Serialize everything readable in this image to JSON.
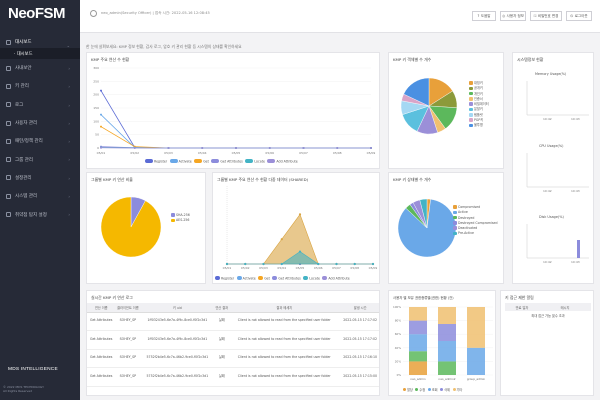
{
  "app": {
    "name": "NeoFSM",
    "vendor": "MDS INTELLIGENCE",
    "copyright_1": "© 2022 MDS TECHNOLOGY",
    "copyright_2": "All Rights Reserved"
  },
  "sidebar": {
    "items": [
      {
        "label": "대시보드",
        "state": "open"
      },
      {
        "label": "· 대시보드",
        "state": "sub"
      },
      {
        "label": "사내보안"
      },
      {
        "label": "키 관리"
      },
      {
        "label": "로그"
      },
      {
        "label": "사용자 관리"
      },
      {
        "label": "패턴/정책 관리"
      },
      {
        "label": "그룹 관리"
      },
      {
        "label": "설정관리"
      },
      {
        "label": "시스템 관리"
      },
      {
        "label": "취약점 탐지 설정"
      }
    ]
  },
  "topbar": {
    "user": "neo_admin(Security Officer) | 접속 시간: 2022-05-16 12:08:45",
    "buttons": [
      "도움말",
      "사용자 정보",
      "비밀번호 변경",
      "로그아웃"
    ]
  },
  "breadcrumb": "한 눈에 살펴보세요: KMP 정보 현황, 감사 로그, 암호 키 관리 현황 등 시스템의 상태를 확인하세요",
  "kmp_card": {
    "title": "KMP 주요 연산 수 현황",
    "legend": [
      "Register",
      "Activate",
      "Get",
      "Get Attributes",
      "Locate",
      "Add Attribute"
    ],
    "legend_colors": [
      "#5b6bd5",
      "#6aa8e8",
      "#f5a623",
      "#8c8cdc",
      "#43b3c5",
      "#9b8fd8"
    ]
  },
  "kmp_types_card": {
    "title": "KMP 키 객체별 수 개수",
    "legend": [
      "대칭키",
      "공개키",
      "개인키",
      "인증서",
      "비밀데이터",
      "분할키",
      "템플릿",
      "PGP키",
      "불투명"
    ],
    "colors": [
      "#e8a03a",
      "#8c9a3a",
      "#5cb85c",
      "#f0c070",
      "#9b8fd8",
      "#5bc0de",
      "#a5d8f3",
      "#d9a4c8",
      "#4a90e2"
    ]
  },
  "sys_card": {
    "title": "시스템정보 현황",
    "memory": {
      "label": "Memory Usage(%)",
      "ticks": [
        "10:42",
        "10:43"
      ]
    },
    "cpu": {
      "label": "CPU Usage(%)",
      "ticks": [
        "10:42",
        "10:43"
      ]
    },
    "disk": {
      "label": "Disk Usage(%)",
      "ticks": [
        "10:42",
        "10:43"
      ]
    }
  },
  "group_card": {
    "title": "그룹별 KMP 키 연산 비율",
    "legend": [
      "SHA-256",
      "AES-256"
    ]
  },
  "group_ops_card": {
    "title": "그룹별 KMP 주요 연산 수 현황 다중 데이터 (SHARED)"
  },
  "state_card": {
    "title": "KMP 키 상태별 수 개수",
    "legend": [
      "Compromised",
      "Active",
      "Destroyed",
      "Destroyed Compromised",
      "Deactivated",
      "Pre-Active"
    ],
    "colors": [
      "#e8a03a",
      "#6aa8e8",
      "#5cb85c",
      "#8c8cdc",
      "#9b8fd8",
      "#43b3c5"
    ]
  },
  "log_card": {
    "title": "실시간 KMP 키 연산 로그",
    "headers": [
      "연산 이름",
      "클라이언트 이름",
      "키 uid",
      "연산 결과",
      "결과 메세지",
      "발생 시간"
    ],
    "rows": [
      [
        "Get Attributes",
        "SOHEY_SP",
        "1ff03243e5-6e7a-4f9c-8ce0-f0f2c3d1",
        "실패",
        "Client is not allowed to read from the specified user folder",
        "2022-05-15 17:17:02"
      ],
      [
        "Get Attributes",
        "SOHEY_SP",
        "1ff03243e5-6e7a-4f9c-8ce0-f0f2c3d1",
        "실패",
        "Client is not allowed to read from the specified user folder",
        "2022-05-15 17:17:02"
      ],
      [
        "Get Attributes",
        "SOHEY_SP",
        "5752f2b4e5-6c7a-46b2-9ce0-f0f2c3d1",
        "실패",
        "Client is not allowed to read from the specified user folder",
        "2022-05-15 17:16:10"
      ],
      [
        "Get Attributes",
        "SOHEY_SP",
        "5752f2b4e5-6c7a-46b2-9ce0-f0f2c3d1",
        "실패",
        "Client is not allowed to read from the specified user folder",
        "2022-05-15 17:15:00"
      ]
    ]
  },
  "user_perm_card": {
    "title": "사용자 별 보유 권한종류별(권한) 현황 (건)",
    "legend": [
      "할당",
      "수정",
      "조회",
      "삭제",
      "기타"
    ],
    "legend_colors": [
      "#e8a03a",
      "#5cb85c",
      "#6aa8e8",
      "#8c8cdc",
      "#f0c070"
    ]
  },
  "alert_card": {
    "title": "키 접근 제한 알림",
    "headers": [
      "만료 일자",
      "메시지"
    ],
    "row": "최대 접근 가능 횟수 초과"
  },
  "chart_data": [
    {
      "type": "line",
      "title": "KMP 주요 연산 수 현황",
      "categories": [
        "05/01",
        "05/02",
        "05/03",
        "05/04",
        "05/05",
        "05/06",
        "05/07",
        "05/08",
        "05/09"
      ],
      "ylim": [
        0,
        300
      ],
      "yticks": [
        0,
        50,
        100,
        150,
        200,
        250,
        300
      ],
      "series": [
        {
          "name": "Register",
          "values": [
            215,
            2,
            0,
            0,
            0,
            0,
            0,
            0,
            0
          ]
        },
        {
          "name": "Activate",
          "values": [
            125,
            2,
            0,
            0,
            0,
            0,
            0,
            0,
            0
          ]
        },
        {
          "name": "Get",
          "values": [
            80,
            5,
            0,
            0,
            0,
            0,
            0,
            0,
            0
          ]
        },
        {
          "name": "Get Attributes",
          "values": [
            5,
            1,
            0,
            0,
            0,
            0,
            0,
            0,
            0
          ]
        },
        {
          "name": "Locate",
          "values": [
            2,
            1,
            0,
            0,
            0,
            0,
            0,
            0,
            0
          ]
        },
        {
          "name": "Add Attribute",
          "values": [
            1,
            0,
            0,
            0,
            0,
            0,
            0,
            0,
            0
          ]
        }
      ]
    },
    {
      "type": "pie",
      "title": "KMP 키 객체별 수 개수",
      "labels": [
        "대칭키",
        "공개키",
        "개인키",
        "인증서",
        "비밀데이터",
        "분할키",
        "템플릿",
        "PGP키",
        "불투명"
      ],
      "values": [
        16,
        10,
        14,
        5,
        12,
        13,
        8,
        4,
        18
      ]
    },
    {
      "type": "pie",
      "title": "그룹별 KMP 키 연산 비율",
      "labels": [
        "SHA-256",
        "AES-256"
      ],
      "values": [
        8,
        92
      ]
    },
    {
      "type": "area",
      "title": "그룹별 KMP 주요 연산 수 현황 다중 데이터 (SHARED)",
      "categories": [
        "05/01",
        "05/02",
        "05/03",
        "05/04",
        "05/05",
        "05/06",
        "05/07",
        "05/08",
        "05/09"
      ],
      "ylim": [
        0,
        5
      ],
      "series": [
        {
          "name": "Register",
          "values": [
            0,
            0,
            0,
            0,
            0,
            0,
            0,
            0,
            0
          ]
        },
        {
          "name": "Get",
          "values": [
            0,
            0,
            0,
            2,
            4,
            0,
            0,
            0,
            0
          ]
        },
        {
          "name": "Activate",
          "values": [
            0,
            0,
            0,
            0,
            1,
            0,
            0,
            0,
            0
          ]
        }
      ]
    },
    {
      "type": "pie",
      "title": "KMP 키 상태별 수 개수",
      "labels": [
        "Compromised",
        "Active",
        "Destroyed",
        "Destroyed Compromised",
        "Deactivated",
        "Pre-Active"
      ],
      "values": [
        2,
        85,
        3,
        2,
        4,
        4
      ]
    },
    {
      "type": "bar",
      "title": "사용자 별 보유 권한종류별(권한) 현황 (건)",
      "categories": [
        "neo_admin",
        "neo_admin2",
        "group_admin"
      ],
      "ylim": [
        0,
        100
      ],
      "series": [
        {
          "name": "할당",
          "values": [
            20,
            0,
            0
          ]
        },
        {
          "name": "수정",
          "values": [
            15,
            20,
            0
          ]
        },
        {
          "name": "조회",
          "values": [
            25,
            30,
            40
          ]
        },
        {
          "name": "삭제",
          "values": [
            20,
            25,
            0
          ]
        },
        {
          "name": "기타",
          "values": [
            20,
            25,
            60
          ]
        }
      ]
    }
  ]
}
